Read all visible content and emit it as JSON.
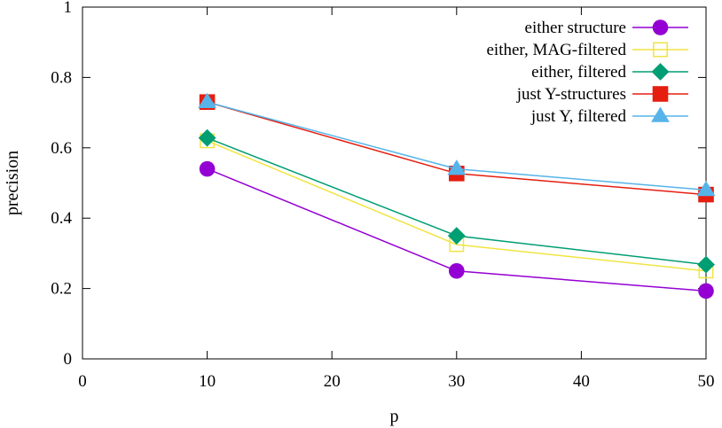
{
  "chart_data": {
    "type": "line",
    "xlabel": "p",
    "ylabel": "precision",
    "xlim": [
      0,
      50
    ],
    "ylim": [
      0,
      1
    ],
    "x_ticks": [
      "0",
      "10",
      "20",
      "30",
      "40",
      "50"
    ],
    "y_ticks": [
      "0",
      "0.2",
      "0.4",
      "0.6",
      "0.8",
      "1"
    ],
    "x": [
      10,
      30,
      50
    ],
    "legend_position": "top-right",
    "grid": false,
    "series": [
      {
        "name": "either structure",
        "values": [
          0.54,
          0.25,
          0.193
        ],
        "color": "#9400d3",
        "marker": "filled-circle"
      },
      {
        "name": "either, MAG-filtered",
        "values": [
          0.62,
          0.325,
          0.25
        ],
        "color": "#f0e442",
        "marker": "open-square"
      },
      {
        "name": "either, filtered",
        "values": [
          0.628,
          0.35,
          0.268
        ],
        "color": "#009e73",
        "marker": "filled-diamond"
      },
      {
        "name": "just Y-structures",
        "values": [
          0.73,
          0.527,
          0.467
        ],
        "color": "#e51e10",
        "marker": "filled-square"
      },
      {
        "name": "just Y, filtered",
        "values": [
          0.73,
          0.54,
          0.48
        ],
        "color": "#56b4e9",
        "marker": "filled-triangle"
      }
    ]
  }
}
